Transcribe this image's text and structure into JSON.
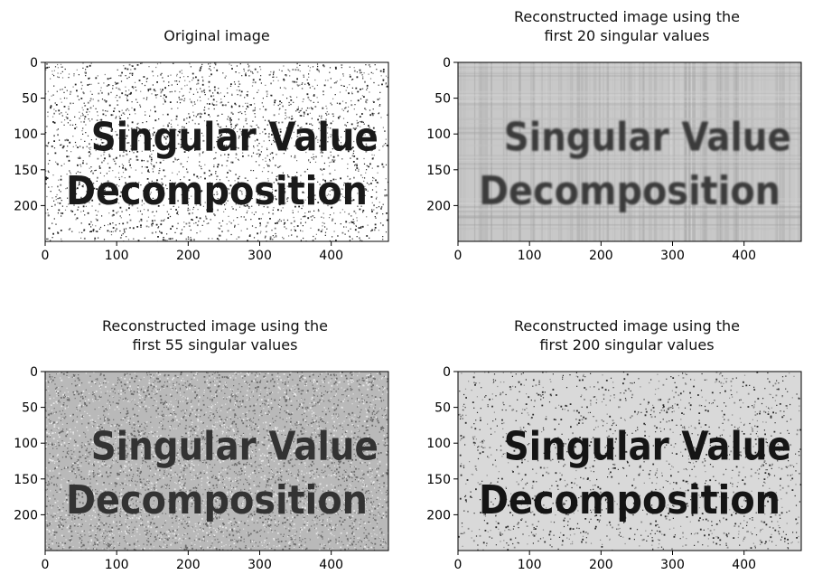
{
  "chart_data": [
    {
      "type": "heatmap",
      "title_lines": [
        "Original image"
      ],
      "image_text": [
        "Singular Value",
        "Decomposition"
      ],
      "xlim": [
        0,
        480
      ],
      "ylim": [
        250,
        0
      ],
      "xticks": [
        0,
        100,
        200,
        300,
        400
      ],
      "yticks": [
        0,
        50,
        100,
        150,
        200
      ],
      "colormap": "gray",
      "background_color": "#ffffff",
      "text_color": "#1a1a1a",
      "noise": "sparse salt-and-pepper"
    },
    {
      "type": "heatmap",
      "title_lines": [
        "Reconstructed image using the",
        "first 20 singular values"
      ],
      "image_text": [
        "Singular Value",
        "Decomposition"
      ],
      "xlim": [
        0,
        480
      ],
      "ylim": [
        250,
        0
      ],
      "xticks": [
        0,
        100,
        200,
        300,
        400
      ],
      "yticks": [
        0,
        50,
        100,
        150,
        200
      ],
      "colormap": "gray",
      "background_color": "#c8c8c8",
      "text_color": "#3a3a3a",
      "noise": "smooth banded"
    },
    {
      "type": "heatmap",
      "title_lines": [
        "Reconstructed image using the",
        "first 55 singular values"
      ],
      "image_text": [
        "Singular Value",
        "Decomposition"
      ],
      "xlim": [
        0,
        480
      ],
      "ylim": [
        250,
        0
      ],
      "xticks": [
        0,
        100,
        200,
        300,
        400
      ],
      "yticks": [
        0,
        50,
        100,
        150,
        200
      ],
      "colormap": "gray",
      "background_color": "#b9b9b9",
      "text_color": "#333333",
      "noise": "dense grainy"
    },
    {
      "type": "heatmap",
      "title_lines": [
        "Reconstructed image using the",
        "first 200 singular values"
      ],
      "image_text": [
        "Singular Value",
        "Decomposition"
      ],
      "xlim": [
        0,
        480
      ],
      "ylim": [
        250,
        0
      ],
      "xticks": [
        0,
        100,
        200,
        300,
        400
      ],
      "yticks": [
        0,
        50,
        100,
        150,
        200
      ],
      "colormap": "gray",
      "background_color": "#d9d9d9",
      "text_color": "#151515",
      "noise": "sparse speckle"
    }
  ]
}
